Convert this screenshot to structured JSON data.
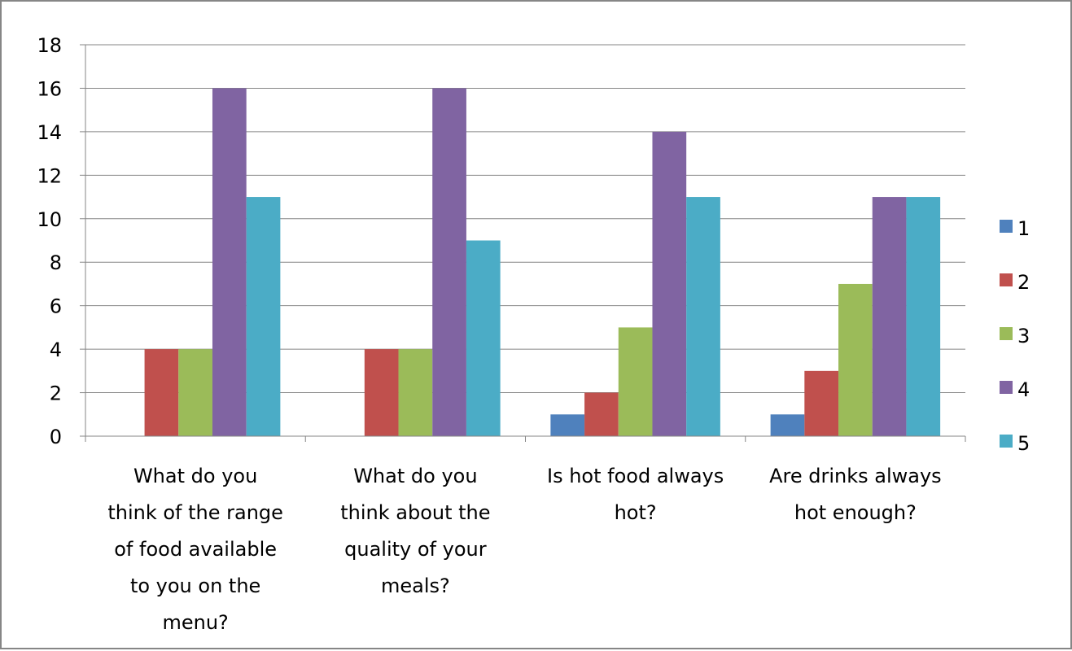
{
  "chart_data": {
    "type": "bar",
    "categories": [
      [
        "What do you",
        "think of the range",
        "of food available",
        "to you on the",
        "menu?"
      ],
      [
        "What do you",
        "think about the",
        "quality of your",
        "meals?"
      ],
      [
        "Is hot food always",
        "hot?"
      ],
      [
        "Are drinks always",
        "hot enough?"
      ]
    ],
    "series": [
      {
        "name": "1",
        "color": "#4f81bd",
        "values": [
          0,
          0,
          1,
          1
        ]
      },
      {
        "name": "2",
        "color": "#c0504d",
        "values": [
          4,
          4,
          2,
          3
        ]
      },
      {
        "name": "3",
        "color": "#9bbb59",
        "values": [
          4,
          4,
          5,
          7
        ]
      },
      {
        "name": "4",
        "color": "#8064a2",
        "values": [
          16,
          16,
          14,
          11
        ]
      },
      {
        "name": "5",
        "color": "#4bacc6",
        "values": [
          11,
          9,
          11,
          11
        ]
      }
    ],
    "y_ticks": [
      "0",
      "2",
      "4",
      "6",
      "8",
      "10",
      "12",
      "14",
      "16",
      "18"
    ],
    "ylim": [
      0,
      18
    ],
    "grid": true,
    "legend_position": "right",
    "title": "",
    "xlabel": "",
    "ylabel": ""
  }
}
